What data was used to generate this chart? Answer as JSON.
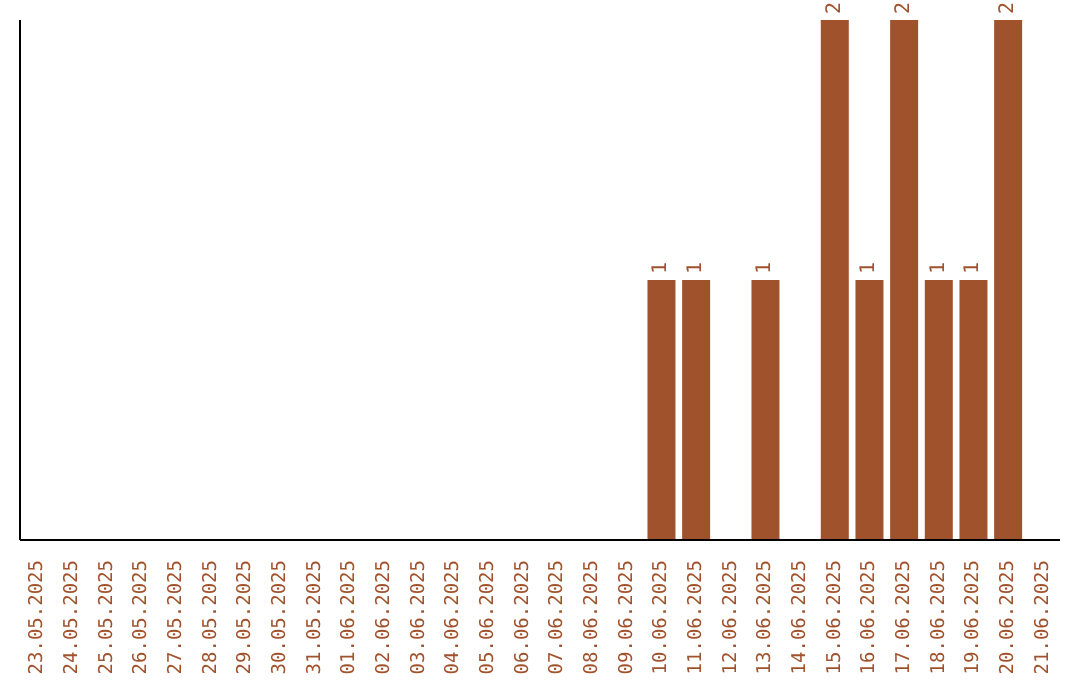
{
  "chart_data": {
    "type": "bar",
    "categories": [
      "23.05.2025",
      "24.05.2025",
      "25.05.2025",
      "26.05.2025",
      "27.05.2025",
      "28.05.2025",
      "29.05.2025",
      "30.05.2025",
      "31.05.2025",
      "01.06.2025",
      "02.06.2025",
      "03.06.2025",
      "04.06.2025",
      "05.06.2025",
      "06.06.2025",
      "07.06.2025",
      "08.06.2025",
      "09.06.2025",
      "10.06.2025",
      "11.06.2025",
      "12.06.2025",
      "13.06.2025",
      "14.06.2025",
      "15.06.2025",
      "16.06.2025",
      "17.06.2025",
      "18.06.2025",
      "19.06.2025",
      "20.06.2025",
      "21.06.2025"
    ],
    "values": [
      null,
      null,
      null,
      null,
      null,
      null,
      null,
      null,
      null,
      null,
      null,
      null,
      null,
      null,
      null,
      null,
      null,
      null,
      1,
      1,
      null,
      1,
      null,
      2,
      1,
      2,
      1,
      1,
      2,
      null
    ],
    "data_labels": true,
    "color": "#a0522d",
    "tick_labels": "x"
  }
}
